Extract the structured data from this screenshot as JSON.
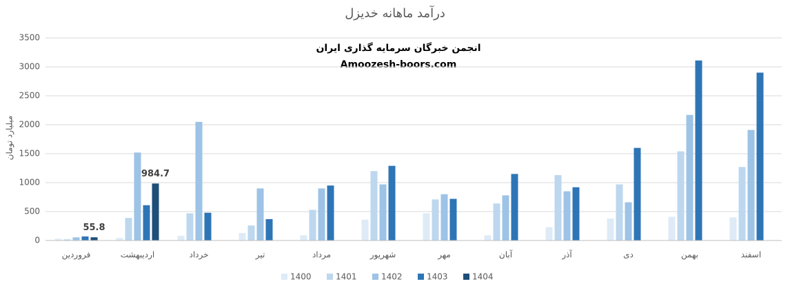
{
  "chart_data": {
    "type": "bar",
    "title": "درآمد ماهانه خدیزل",
    "y_label": "میلیارد تومان",
    "annotations": [
      "انجمن خبرگان سرمایه گذاری ایران",
      "Amoozesh-boors.com"
    ],
    "categories": [
      "فروردین",
      "اردیبهشت",
      "خرداد",
      "تیر",
      "مرداد",
      "شهریور",
      "مهر",
      "آبان",
      "آذر",
      "دی",
      "بهمن",
      "اسفند"
    ],
    "series": [
      {
        "name": "1400",
        "color": "#deebf7",
        "values": [
          30,
          45,
          80,
          130,
          90,
          360,
          470,
          90,
          230,
          380,
          410,
          400
        ]
      },
      {
        "name": "1401",
        "color": "#bdd7ee",
        "values": [
          20,
          390,
          470,
          260,
          530,
          1200,
          710,
          640,
          1130,
          970,
          1540,
          1270
        ]
      },
      {
        "name": "1402",
        "color": "#9dc3e6",
        "values": [
          55,
          1520,
          2050,
          900,
          900,
          970,
          800,
          780,
          850,
          660,
          2170,
          1910
        ]
      },
      {
        "name": "1403",
        "color": "#2e75b6",
        "values": [
          70,
          610,
          480,
          370,
          950,
          1290,
          720,
          1150,
          920,
          1600,
          3110,
          2900
        ]
      },
      {
        "name": "1404",
        "color": "#1f4e79",
        "values": [
          55.8,
          984.7,
          null,
          null,
          null,
          null,
          null,
          null,
          null,
          null,
          null,
          null
        ],
        "data_labels": true
      }
    ],
    "ylim": [
      0,
      3500
    ],
    "yticks": [
      0,
      500,
      1000,
      1500,
      2000,
      2500,
      3000,
      3500
    ],
    "grid": true,
    "legend": "bottom"
  }
}
